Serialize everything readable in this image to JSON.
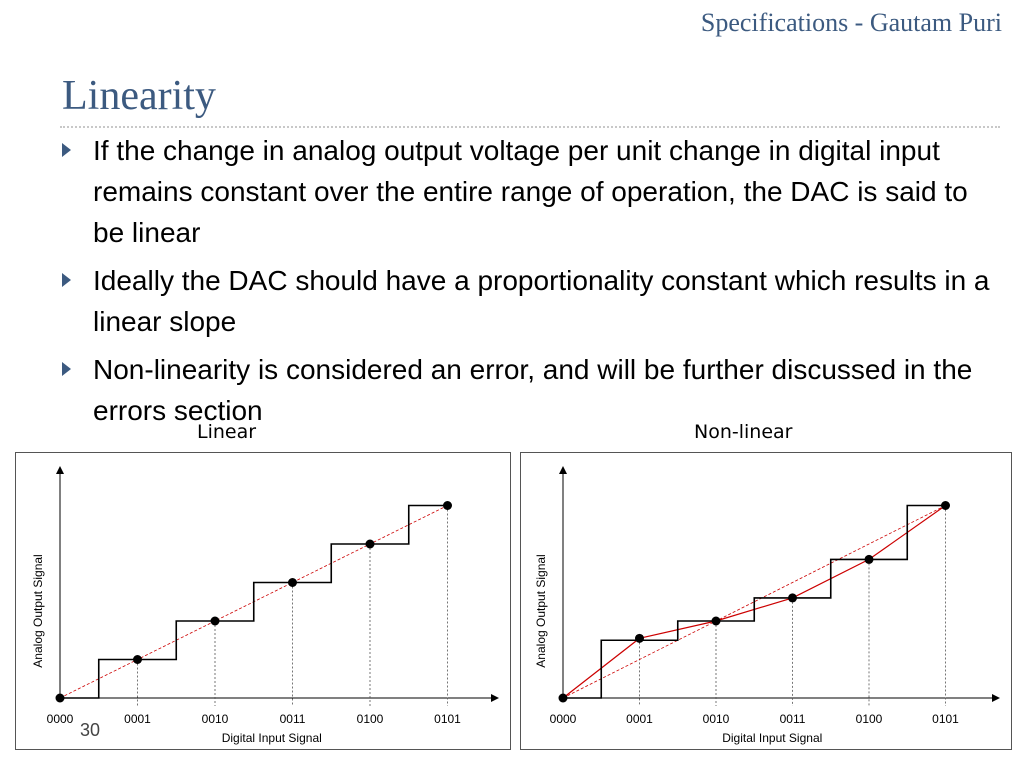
{
  "header": {
    "presenter": "Specifications - Gautam Puri"
  },
  "title": "Linearity",
  "bullets": [
    "If the change in analog output voltage per unit change in digital input remains constant over the entire range of operation, the DAC is said to be linear",
    "Ideally the DAC should have a proportionality constant which results in a linear slope",
    "Non-linearity is considered an error, and will be further discussed in the errors section"
  ],
  "slide_number": "30",
  "colors": {
    "heading": "#3c5a80",
    "reference_line": "#cc0000",
    "staircase": "#000000"
  },
  "chart_data": [
    {
      "type": "line",
      "title": "Linear",
      "xlabel": "Digital Input Signal",
      "ylabel": "Analog Output Signal",
      "categories": [
        "0000",
        "0001",
        "0010",
        "0011",
        "0100",
        "0101"
      ],
      "staircase": [
        0,
        1,
        2,
        3,
        4,
        5
      ],
      "points": [
        0,
        1,
        2,
        3,
        4,
        5
      ],
      "ylim": [
        0,
        5.5
      ]
    },
    {
      "type": "line",
      "title": "Non-linear",
      "xlabel": "Digital Input Signal",
      "ylabel": "Analog Output Signal",
      "categories": [
        "0000",
        "0001",
        "0010",
        "0011",
        "0100",
        "0101"
      ],
      "staircase": [
        0,
        1.5,
        2,
        2.6,
        3.6,
        5
      ],
      "points": [
        0,
        1.55,
        2.0,
        2.6,
        3.6,
        5.0
      ],
      "ylim": [
        0,
        5.5
      ]
    }
  ]
}
